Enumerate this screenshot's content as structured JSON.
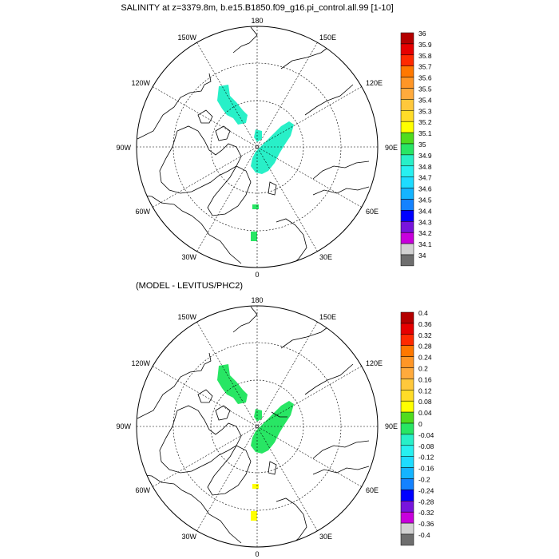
{
  "panels": [
    {
      "title": "SALINITY at z=3379.8m, b.e15.B1850.f09_g16.pi_control.all.99 [1-10]",
      "lon_labels": {
        "top": "180",
        "bottom": "0",
        "left": "90W",
        "right": "90E",
        "upper_left_1": "150W",
        "upper_left_2": "120W",
        "upper_right_1": "150E",
        "upper_right_2": "120E",
        "lower_left_1": "60W",
        "lower_left_2": "30W",
        "lower_right_1": "60E",
        "lower_right_2": "30E"
      },
      "colorbar": {
        "labels": [
          "36",
          "35.9",
          "35.8",
          "35.7",
          "35.6",
          "35.5",
          "35.4",
          "35.3",
          "35.2",
          "35.1",
          "35",
          "34.9",
          "34.8",
          "34.7",
          "34.6",
          "34.5",
          "34.4",
          "34.3",
          "34.2",
          "34.1",
          "34"
        ],
        "colors": [
          "#b40000",
          "#e60000",
          "#ff2a00",
          "#ff7800",
          "#ff9626",
          "#ffaa3c",
          "#ffc83c",
          "#ffdc28",
          "#ffff00",
          "#50dc1e",
          "#28e664",
          "#28f0c8",
          "#28f0f0",
          "#1edcff",
          "#14b4ff",
          "#1482ff",
          "#0000ff",
          "#7814dc",
          "#c800dc",
          "#d2d2d2",
          "#6e6e6e"
        ]
      },
      "field_color": "#28f0c8",
      "field_color_2": "#28e664"
    },
    {
      "title": "(MODEL - LEVITUS/PHC2)",
      "lon_labels": {
        "top": "180",
        "bottom": "0",
        "left": "90W",
        "right": "90E",
        "upper_left_1": "150W",
        "upper_left_2": "120W",
        "upper_right_1": "150E",
        "upper_right_2": "120E",
        "lower_left_1": "60W",
        "lower_left_2": "30W",
        "lower_right_1": "60E",
        "lower_right_2": "30E"
      },
      "colorbar": {
        "labels": [
          "0.4",
          "0.36",
          "0.32",
          "0.28",
          "0.24",
          "0.2",
          "0.16",
          "0.12",
          "0.08",
          "0.04",
          "0",
          "-0.04",
          "-0.08",
          "-0.12",
          "-0.16",
          "-0.2",
          "-0.24",
          "-0.28",
          "-0.32",
          "-0.36",
          "-0.4"
        ],
        "colors": [
          "#b40000",
          "#e60000",
          "#ff2a00",
          "#ff7800",
          "#ff9626",
          "#ffaa3c",
          "#ffc83c",
          "#ffdc28",
          "#ffff00",
          "#50dc1e",
          "#28e664",
          "#28f0c8",
          "#28f0f0",
          "#1edcff",
          "#14b4ff",
          "#1482ff",
          "#0000ff",
          "#7814dc",
          "#c800dc",
          "#d2d2d2",
          "#6e6e6e"
        ]
      },
      "field_color": "#28e664",
      "field_color_2": "#ffff00"
    }
  ]
}
